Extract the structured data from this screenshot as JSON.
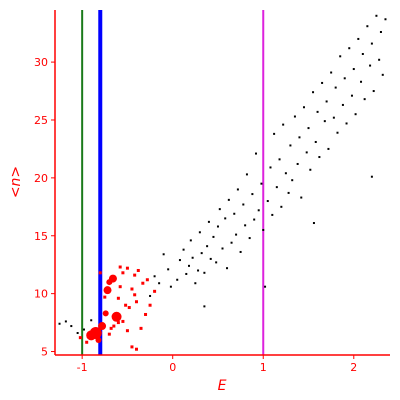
{
  "chart_data": {
    "type": "scatter",
    "title": "",
    "xlabel": "E",
    "ylabel": "<n>",
    "xlim": [
      -1.3,
      2.4
    ],
    "ylim": [
      4.7,
      34.5
    ],
    "x_ticks": [
      -1,
      0,
      1,
      2
    ],
    "y_ticks": [
      5,
      10,
      15,
      20,
      25,
      30
    ],
    "grid": false,
    "colors": {
      "axes": "#ff0000",
      "black_points": "#000000",
      "red_points": "#ff0000",
      "line_green": "#1a7a1a",
      "line_blue": "#0000ff",
      "line_magenta": "#dd22dd"
    },
    "vertical_lines": [
      {
        "x": -1.0,
        "color": "#1a7a1a"
      },
      {
        "x": -0.8,
        "color": "#0000ff"
      },
      {
        "x": 1.0,
        "color": "#dd22dd"
      }
    ],
    "series": [
      {
        "marker": "dot",
        "color": "#000000",
        "points": [
          [
            -1.25,
            7.4
          ],
          [
            -1.18,
            7.6
          ],
          [
            -1.12,
            7.2
          ],
          [
            -1.05,
            6.6
          ],
          [
            -0.98,
            6.9
          ],
          [
            -0.9,
            7.7
          ],
          [
            -0.25,
            9.8
          ],
          [
            -0.2,
            11.5
          ],
          [
            -0.15,
            10.9
          ],
          [
            -0.1,
            13.4
          ],
          [
            -0.05,
            12.1
          ],
          [
            -0.02,
            10.6
          ],
          [
            0.05,
            11.2
          ],
          [
            0.08,
            12.9
          ],
          [
            0.12,
            13.8
          ],
          [
            0.15,
            11.7
          ],
          [
            0.18,
            12.4
          ],
          [
            0.2,
            14.6
          ],
          [
            0.22,
            13.1
          ],
          [
            0.25,
            10.9
          ],
          [
            0.28,
            12.0
          ],
          [
            0.3,
            15.3
          ],
          [
            0.32,
            13.5
          ],
          [
            0.35,
            11.8
          ],
          [
            0.38,
            14.1
          ],
          [
            0.4,
            16.2
          ],
          [
            0.42,
            13.0
          ],
          [
            0.45,
            14.9
          ],
          [
            0.48,
            12.7
          ],
          [
            0.5,
            15.8
          ],
          [
            0.52,
            17.3
          ],
          [
            0.55,
            13.9
          ],
          [
            0.58,
            16.5
          ],
          [
            0.6,
            12.2
          ],
          [
            0.62,
            18.1
          ],
          [
            0.65,
            14.4
          ],
          [
            0.68,
            16.9
          ],
          [
            0.7,
            15.1
          ],
          [
            0.72,
            19.0
          ],
          [
            0.75,
            13.6
          ],
          [
            0.78,
            17.7
          ],
          [
            0.8,
            15.9
          ],
          [
            0.82,
            20.3
          ],
          [
            0.85,
            14.8
          ],
          [
            0.88,
            18.6
          ],
          [
            0.9,
            16.4
          ],
          [
            0.92,
            22.1
          ],
          [
            0.95,
            17.2
          ],
          [
            0.98,
            19.5
          ],
          [
            1.0,
            15.5
          ],
          [
            1.02,
            10.6
          ],
          [
            1.05,
            18.0
          ],
          [
            1.08,
            20.9
          ],
          [
            1.1,
            16.8
          ],
          [
            1.12,
            23.8
          ],
          [
            1.15,
            19.2
          ],
          [
            1.18,
            21.6
          ],
          [
            1.2,
            17.5
          ],
          [
            1.22,
            24.6
          ],
          [
            1.25,
            20.4
          ],
          [
            1.28,
            18.7
          ],
          [
            1.3,
            22.8
          ],
          [
            1.32,
            19.8
          ],
          [
            1.35,
            25.3
          ],
          [
            1.38,
            21.2
          ],
          [
            1.4,
            23.5
          ],
          [
            1.42,
            18.3
          ],
          [
            1.45,
            26.1
          ],
          [
            1.48,
            22.2
          ],
          [
            1.5,
            24.3
          ],
          [
            1.52,
            20.7
          ],
          [
            1.55,
            27.4
          ],
          [
            1.58,
            23.1
          ],
          [
            1.6,
            25.7
          ],
          [
            1.62,
            21.8
          ],
          [
            1.65,
            28.2
          ],
          [
            1.68,
            24.9
          ],
          [
            1.7,
            26.6
          ],
          [
            1.72,
            22.5
          ],
          [
            1.75,
            29.1
          ],
          [
            1.78,
            25.2
          ],
          [
            1.8,
            27.8
          ],
          [
            1.82,
            23.9
          ],
          [
            1.85,
            30.5
          ],
          [
            1.88,
            26.3
          ],
          [
            1.9,
            28.6
          ],
          [
            1.92,
            24.7
          ],
          [
            1.95,
            31.2
          ],
          [
            1.98,
            27.1
          ],
          [
            2.0,
            29.4
          ],
          [
            2.02,
            25.5
          ],
          [
            2.05,
            32.0
          ],
          [
            2.08,
            28.3
          ],
          [
            2.1,
            30.7
          ],
          [
            2.12,
            26.8
          ],
          [
            2.15,
            33.1
          ],
          [
            2.18,
            29.7
          ],
          [
            2.2,
            31.6
          ],
          [
            2.22,
            27.5
          ],
          [
            2.25,
            34.0
          ],
          [
            2.28,
            30.2
          ],
          [
            2.3,
            32.6
          ],
          [
            2.32,
            28.9
          ],
          [
            2.35,
            33.7
          ],
          [
            2.2,
            20.1
          ],
          [
            1.56,
            16.1
          ],
          [
            0.35,
            8.9
          ]
        ]
      },
      {
        "marker": "blob",
        "color": "#ff0000",
        "points": [
          [
            -0.9,
            6.4,
            5
          ],
          [
            -0.85,
            6.6,
            6
          ],
          [
            -0.82,
            6.0,
            3
          ],
          [
            -0.78,
            7.2,
            4
          ],
          [
            -0.74,
            8.3,
            3
          ],
          [
            -0.72,
            10.3,
            4
          ],
          [
            -0.7,
            11.0,
            3
          ],
          [
            -0.75,
            9.7,
            2
          ],
          [
            -0.66,
            11.3,
            4
          ],
          [
            -0.62,
            8.0,
            5
          ],
          [
            -0.6,
            9.6,
            2
          ],
          [
            -0.58,
            10.6,
            2
          ],
          [
            -0.55,
            11.8,
            2
          ],
          [
            -0.5,
            12.2,
            2
          ],
          [
            -0.52,
            9.0,
            2
          ],
          [
            -0.48,
            8.8,
            2
          ],
          [
            -0.45,
            10.4,
            2
          ],
          [
            -0.42,
            11.6,
            2
          ],
          [
            -0.4,
            9.3,
            2
          ],
          [
            -0.38,
            12.0,
            2
          ],
          [
            -0.35,
            7.0,
            2
          ],
          [
            -0.33,
            10.9,
            2
          ],
          [
            -0.3,
            8.2,
            2
          ],
          [
            -0.28,
            11.2,
            2
          ],
          [
            -0.25,
            9.0,
            2
          ],
          [
            -0.68,
            7.0,
            2
          ],
          [
            -0.6,
            7.5,
            2
          ],
          [
            -0.5,
            6.8,
            2
          ],
          [
            -0.45,
            5.4,
            2
          ],
          [
            -0.4,
            5.2,
            2
          ],
          [
            -1.02,
            6.2,
            2
          ],
          [
            -0.95,
            5.8,
            2
          ],
          [
            -0.7,
            6.5,
            2
          ],
          [
            -0.65,
            7.2,
            2
          ],
          [
            -0.2,
            10.2,
            2
          ],
          [
            -0.55,
            7.6,
            2
          ],
          [
            -0.8,
            11.8,
            2
          ],
          [
            -0.42,
            9.9,
            2
          ],
          [
            -0.58,
            12.3,
            2
          ]
        ]
      }
    ]
  }
}
